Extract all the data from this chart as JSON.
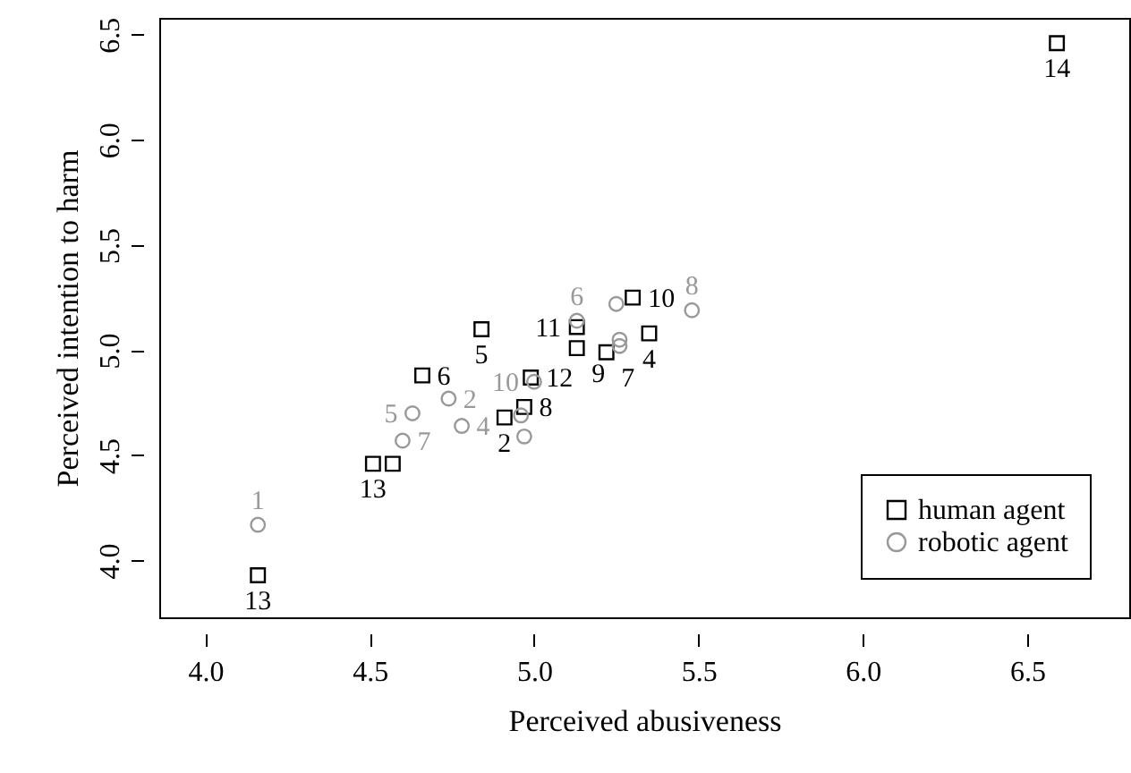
{
  "chart_data": {
    "type": "scatter",
    "xlabel": "Perceived abusiveness",
    "ylabel": "Perceived intention to harm",
    "xlim": [
      3.86,
      6.81
    ],
    "ylim": [
      3.73,
      6.58
    ],
    "xticks": [
      {
        "value": 4,
        "label": "4.0"
      },
      4.5,
      {
        "value": 5,
        "label": "5.0"
      },
      5.5,
      {
        "value": 6,
        "label": "6.0"
      },
      6.5
    ],
    "yticks": [
      {
        "value": 4,
        "label": "4.0"
      },
      4.5,
      {
        "value": 5,
        "label": "5.0"
      },
      5.5,
      {
        "value": 6,
        "label": "6.0"
      },
      6.5
    ],
    "legend": "bottom right",
    "series": [
      {
        "name": "human agent",
        "color": "#000000",
        "marker": "square",
        "x": [
          6.59,
          4.16,
          4.51,
          4.57,
          4.66,
          4.84,
          4.99,
          4.97,
          4.91,
          5.13,
          5.13,
          5.22,
          5.3,
          5.35
        ],
        "values": [
          6.46,
          3.93,
          4.46,
          4.46,
          4.88,
          5.1,
          4.87,
          4.73,
          4.68,
          5.11,
          5.01,
          4.99,
          5.25,
          5.08
        ]
      },
      {
        "name": "robotic agent",
        "color": "#999999",
        "marker": "circle",
        "x": [
          4.16,
          4.6,
          4.63,
          4.74,
          4.78,
          5.0,
          4.97,
          4.96,
          5.13,
          5.25,
          5.26,
          5.26,
          5.48
        ],
        "values": [
          4.17,
          4.57,
          4.7,
          4.77,
          4.64,
          4.85,
          4.59,
          4.69,
          5.14,
          5.22,
          5.05,
          5.02,
          5.19
        ]
      }
    ],
    "annotations": [
      {
        "text": "14",
        "x": 6.59,
        "y": 6.46
      },
      {
        "text": "13",
        "x": 4.16,
        "y": 3.93
      },
      {
        "text": "13",
        "x": 4.51,
        "y": 4.46
      },
      {
        "text": "6",
        "x": 4.66,
        "y": 4.88
      },
      {
        "text": "5",
        "x": 4.84,
        "y": 5.1
      },
      {
        "text": "12",
        "x": 4.99,
        "y": 4.87
      },
      {
        "text": "8",
        "x": 4.97,
        "y": 4.73
      },
      {
        "text": "2",
        "x": 4.91,
        "y": 4.68
      },
      {
        "text": "11",
        "x": 5.13,
        "y": 5.11
      },
      {
        "text": "9",
        "x": 5.13,
        "y": 5.01
      },
      {
        "text": "7",
        "x": 5.22,
        "y": 4.99
      },
      {
        "text": "10",
        "x": 5.3,
        "y": 5.25
      },
      {
        "text": "4",
        "x": 5.35,
        "y": 5.08
      },
      {
        "text": "1",
        "x": 4.16,
        "y": 4.17
      },
      {
        "text": "7",
        "x": 4.6,
        "y": 4.57
      },
      {
        "text": "5",
        "x": 4.63,
        "y": 4.7
      },
      {
        "text": "2",
        "x": 4.74,
        "y": 4.77
      },
      {
        "text": "4",
        "x": 4.78,
        "y": 4.64
      },
      {
        "text": "10",
        "x": 5.0,
        "y": 4.85
      },
      {
        "text": "6",
        "x": 5.13,
        "y": 5.14
      },
      {
        "text": "8",
        "x": 5.48,
        "y": 5.19
      }
    ]
  }
}
